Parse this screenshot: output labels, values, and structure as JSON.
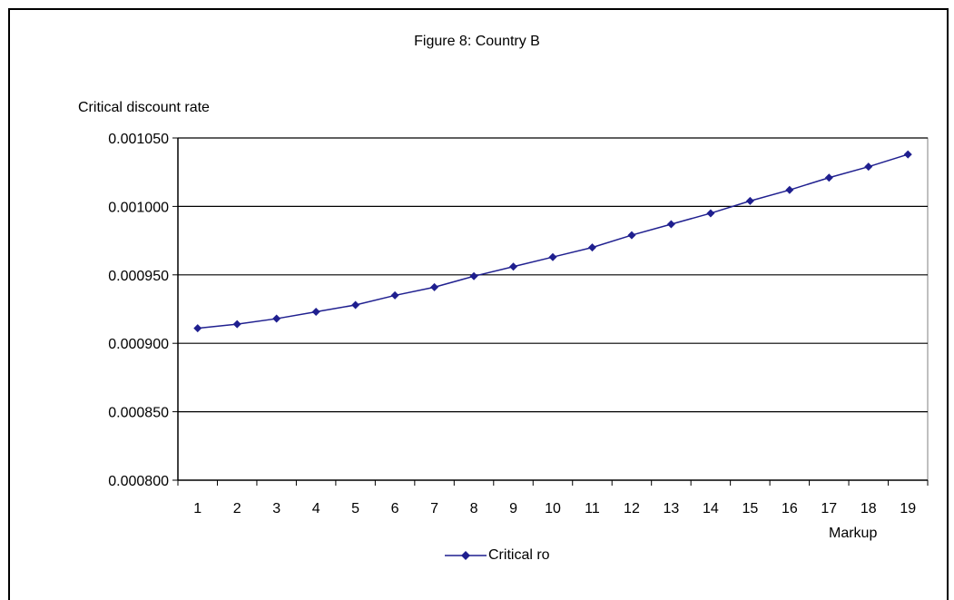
{
  "chart_data": {
    "type": "line",
    "title": "Figure 8: Country B",
    "ylabel": "Critical discount rate",
    "xlabel": "Markup",
    "x": [
      1,
      2,
      3,
      4,
      5,
      6,
      7,
      8,
      9,
      10,
      11,
      12,
      13,
      14,
      15,
      16,
      17,
      18,
      19
    ],
    "series": [
      {
        "name": "Critical ro",
        "color": "#1f1f8f",
        "marker": "diamond",
        "values": [
          0.000911,
          0.000914,
          0.000918,
          0.000923,
          0.000928,
          0.000935,
          0.000941,
          0.000949,
          0.000956,
          0.000963,
          0.00097,
          0.000979,
          0.000987,
          0.000995,
          0.001004,
          0.001012,
          0.001021,
          0.001029,
          0.001038
        ]
      }
    ],
    "ylim": [
      0.0008,
      0.00105
    ],
    "yticks": [
      "0.000800",
      "0.000850",
      "0.000900",
      "0.000950",
      "0.001000",
      "0.001050"
    ],
    "grid": "horizontal",
    "legend_position": "bottom"
  }
}
